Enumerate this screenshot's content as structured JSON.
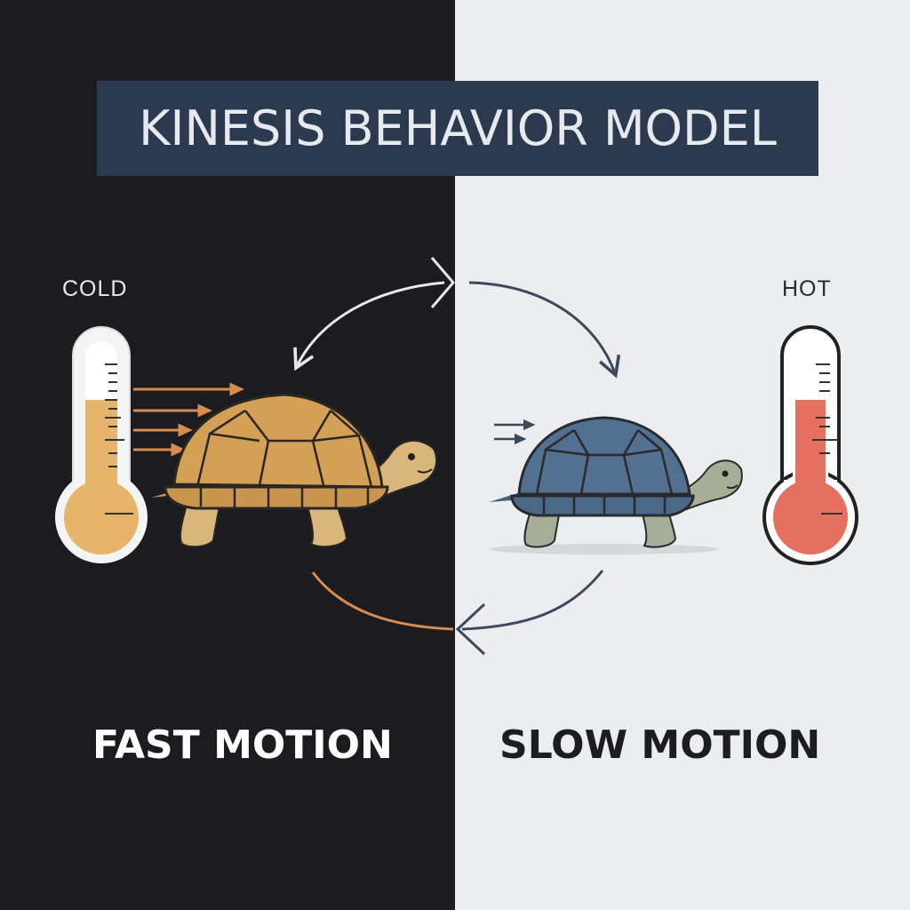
{
  "title": "KINESIS BEHAVIOR MODEL",
  "left_panel": {
    "temperature_label": "COLD",
    "motion_label": "FAST MOTION",
    "turtle_shell_color": "#d4a056",
    "thermometer_fluid_color": "#e6b46a",
    "background_color": "#1c1b20"
  },
  "right_panel": {
    "temperature_label": "HOT",
    "motion_label": "SLOW MOTION",
    "turtle_shell_color": "#52708f",
    "thermometer_fluid_color": "#e5705f",
    "background_color": "#ecedef"
  },
  "colors": {
    "title_banner": "#2b3a4e",
    "cycle_arrow_dark": "#3a4a5c",
    "cycle_arrow_light": "#e8e8ea",
    "cycle_arrow_orange": "#d98c4f"
  },
  "icons": [
    "thermometer-icon",
    "turtle-icon",
    "motion-lines-icon",
    "cycle-arrow-icon"
  ]
}
